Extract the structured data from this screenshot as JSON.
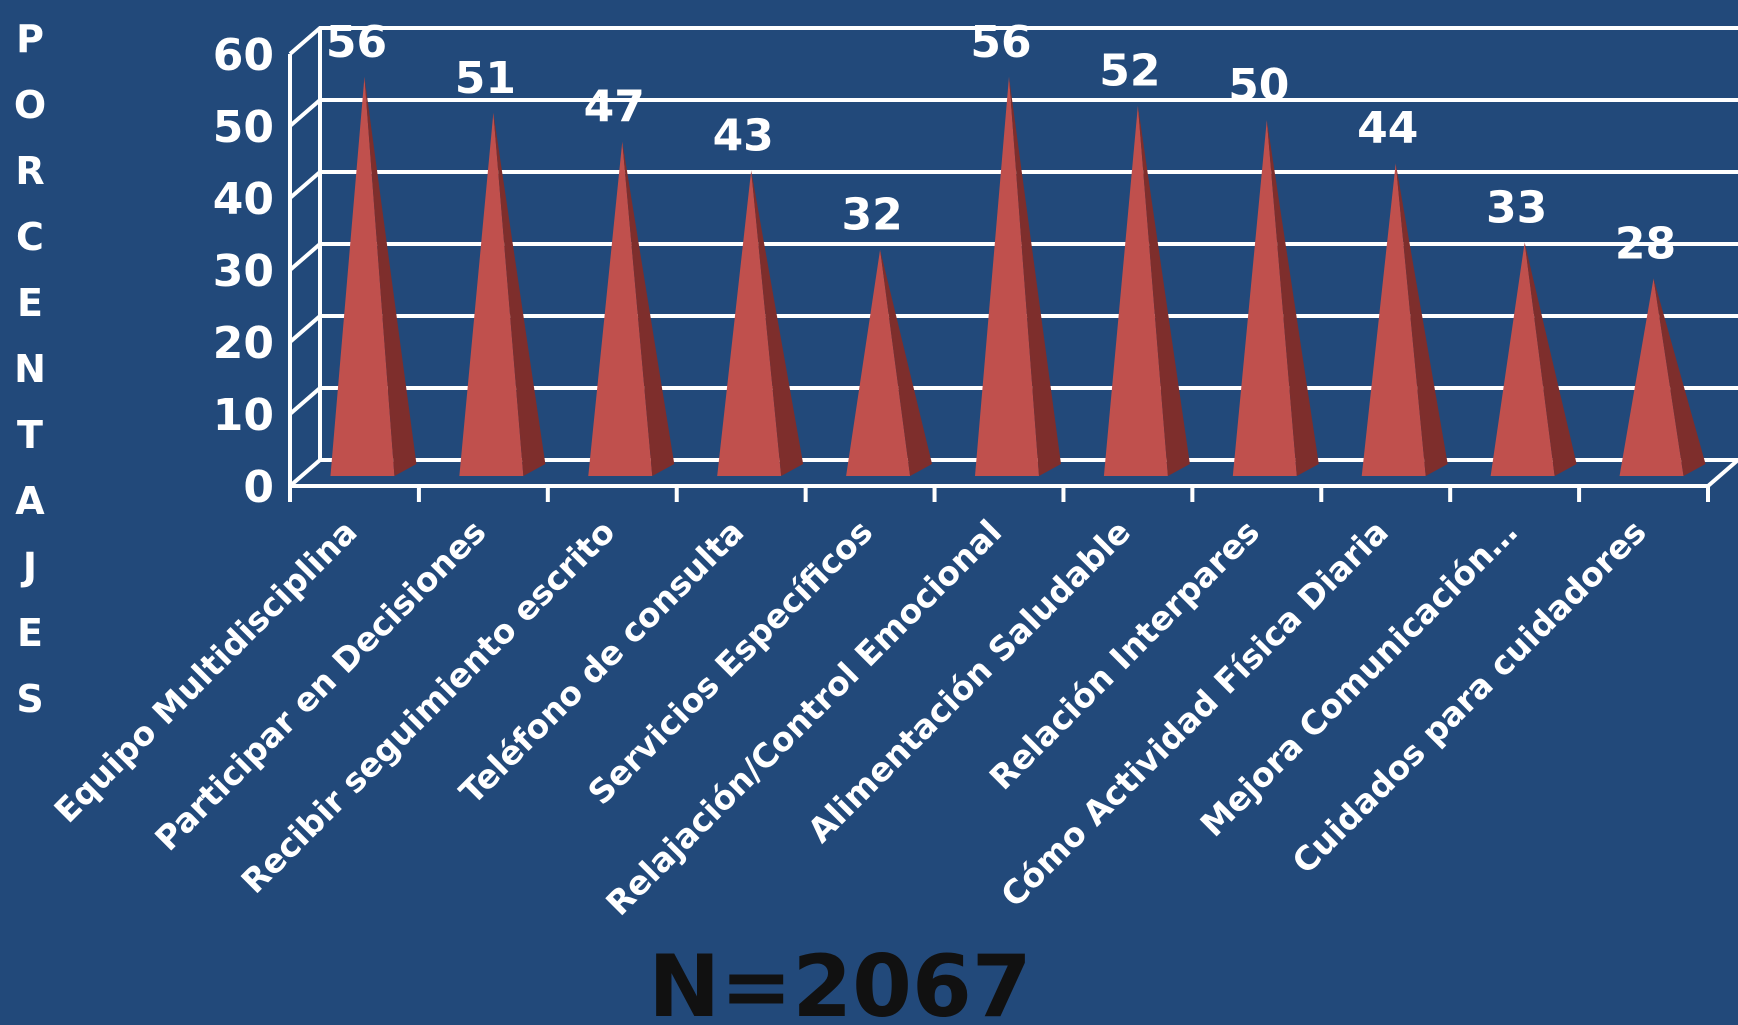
{
  "chart_data": {
    "type": "bar",
    "style": "3d-pyramid",
    "ylabel": "PORCENTAJES",
    "ylim": [
      0,
      60
    ],
    "yticks": [
      0,
      10,
      20,
      30,
      40,
      50,
      60
    ],
    "grid": true,
    "categories": [
      "Equipo Multidisciplina",
      "Participar en Decisiones",
      "Recibir seguimiento escrito",
      "Teléfono de consulta",
      "Servicios Específicos",
      "Relajación/Control Emocional",
      "Alimentación Saludable",
      "Relación Interpares",
      "Cómo Actividad Física Diaria",
      "Mejora Comunicación…",
      "Cuidados para cuidadores"
    ],
    "values": [
      56,
      51,
      47,
      43,
      32,
      56,
      52,
      50,
      44,
      33,
      28
    ],
    "annotation": "N=2067",
    "colors": {
      "background": "#22497a",
      "bar_front": "#c0504d",
      "bar_side": "#7e2e2c",
      "grid": "#ffffff",
      "text": "#ffffff",
      "annotation": "#111111"
    }
  }
}
